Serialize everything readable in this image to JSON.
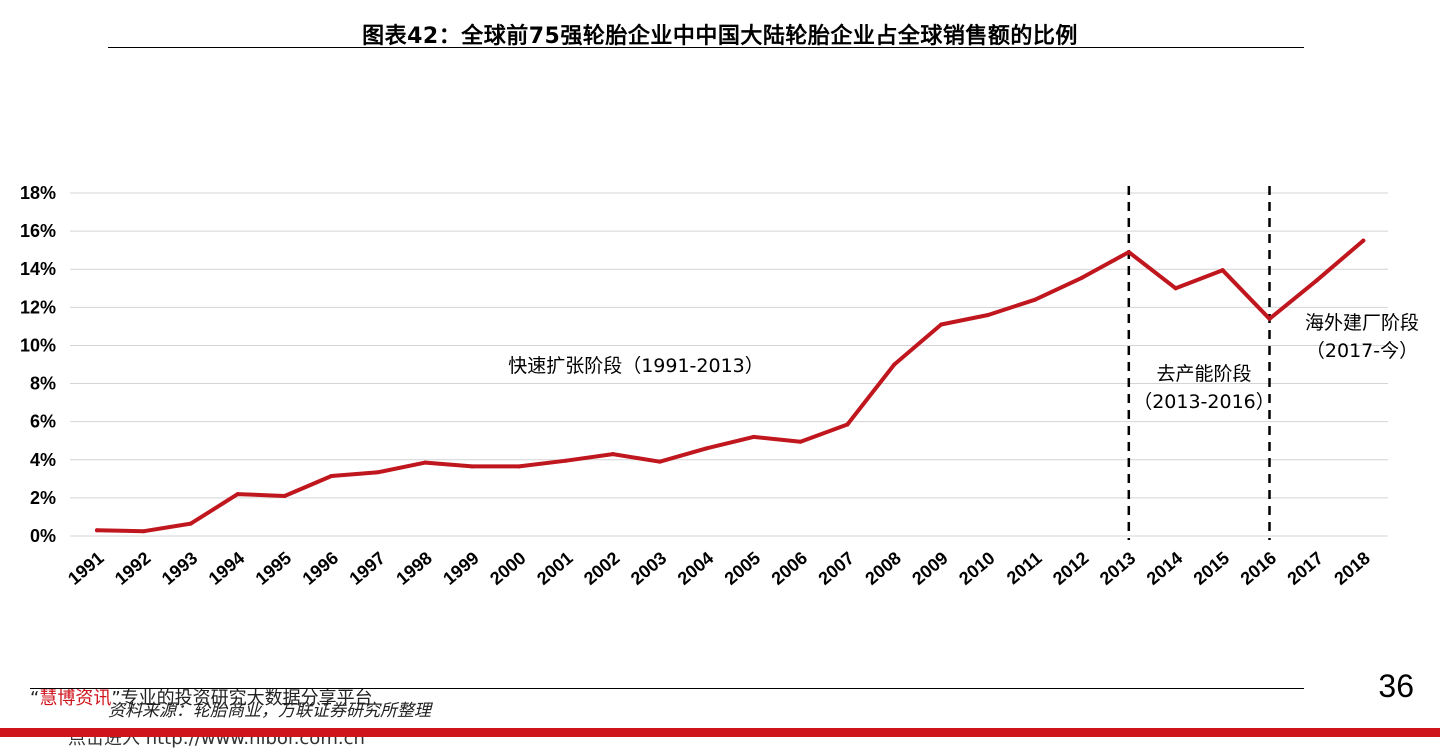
{
  "page": {
    "title": "图表42：全球前75强轮胎企业中中国大陆轮胎企业占全球销售额的比例",
    "page_number": "36",
    "source": "资料来源：轮胎商业，万联证券研究所整理",
    "watermark_quote_open": "“",
    "watermark_brand": "慧博资讯",
    "watermark_rest": "”专业的投资研究大数据分享平台",
    "watermark_link": "点击进入 http://www.hibor.com.cn",
    "accent_color": "#d0141c"
  },
  "chart_data": {
    "type": "line",
    "title": "图表42：全球前75强轮胎企业中中国大陆轮胎企业占全球销售额的比例",
    "xlabel": "",
    "ylabel": "",
    "categories": [
      "1991",
      "1992",
      "1993",
      "1994",
      "1995",
      "1996",
      "1997",
      "1998",
      "1999",
      "2000",
      "2001",
      "2002",
      "2003",
      "2004",
      "2005",
      "2006",
      "2007",
      "2008",
      "2009",
      "2010",
      "2011",
      "2012",
      "2013",
      "2014",
      "2015",
      "2016",
      "2017",
      "2018"
    ],
    "series": [
      {
        "values": [
          0.3,
          0.25,
          0.65,
          2.2,
          2.1,
          3.15,
          3.35,
          3.85,
          3.65,
          3.65,
          3.95,
          4.3,
          3.9,
          4.6,
          5.2,
          4.95,
          5.85,
          9.0,
          11.1,
          11.6,
          12.4,
          13.55,
          14.9,
          13.0,
          13.95,
          11.4,
          13.4,
          15.5
        ],
        "color": "#c0161e"
      }
    ],
    "ylim": [
      0,
      18
    ],
    "yticks": [
      0,
      2,
      4,
      6,
      8,
      10,
      12,
      14,
      16,
      18
    ],
    "ytick_labels": [
      "0%",
      "2%",
      "4%",
      "6%",
      "8%",
      "10%",
      "12%",
      "14%",
      "16%",
      "18%"
    ],
    "grid": "horizontal",
    "dividers": [
      "2013",
      "2016"
    ],
    "annotations": [
      {
        "id": "phase1",
        "lines": [
          "快速扩张阶段（1991-2013）"
        ]
      },
      {
        "id": "phase2",
        "lines": [
          "去产能阶段",
          "（2013-2016）"
        ]
      },
      {
        "id": "phase3",
        "lines": [
          "海外建厂阶段",
          "（2017-今）"
        ]
      }
    ]
  }
}
